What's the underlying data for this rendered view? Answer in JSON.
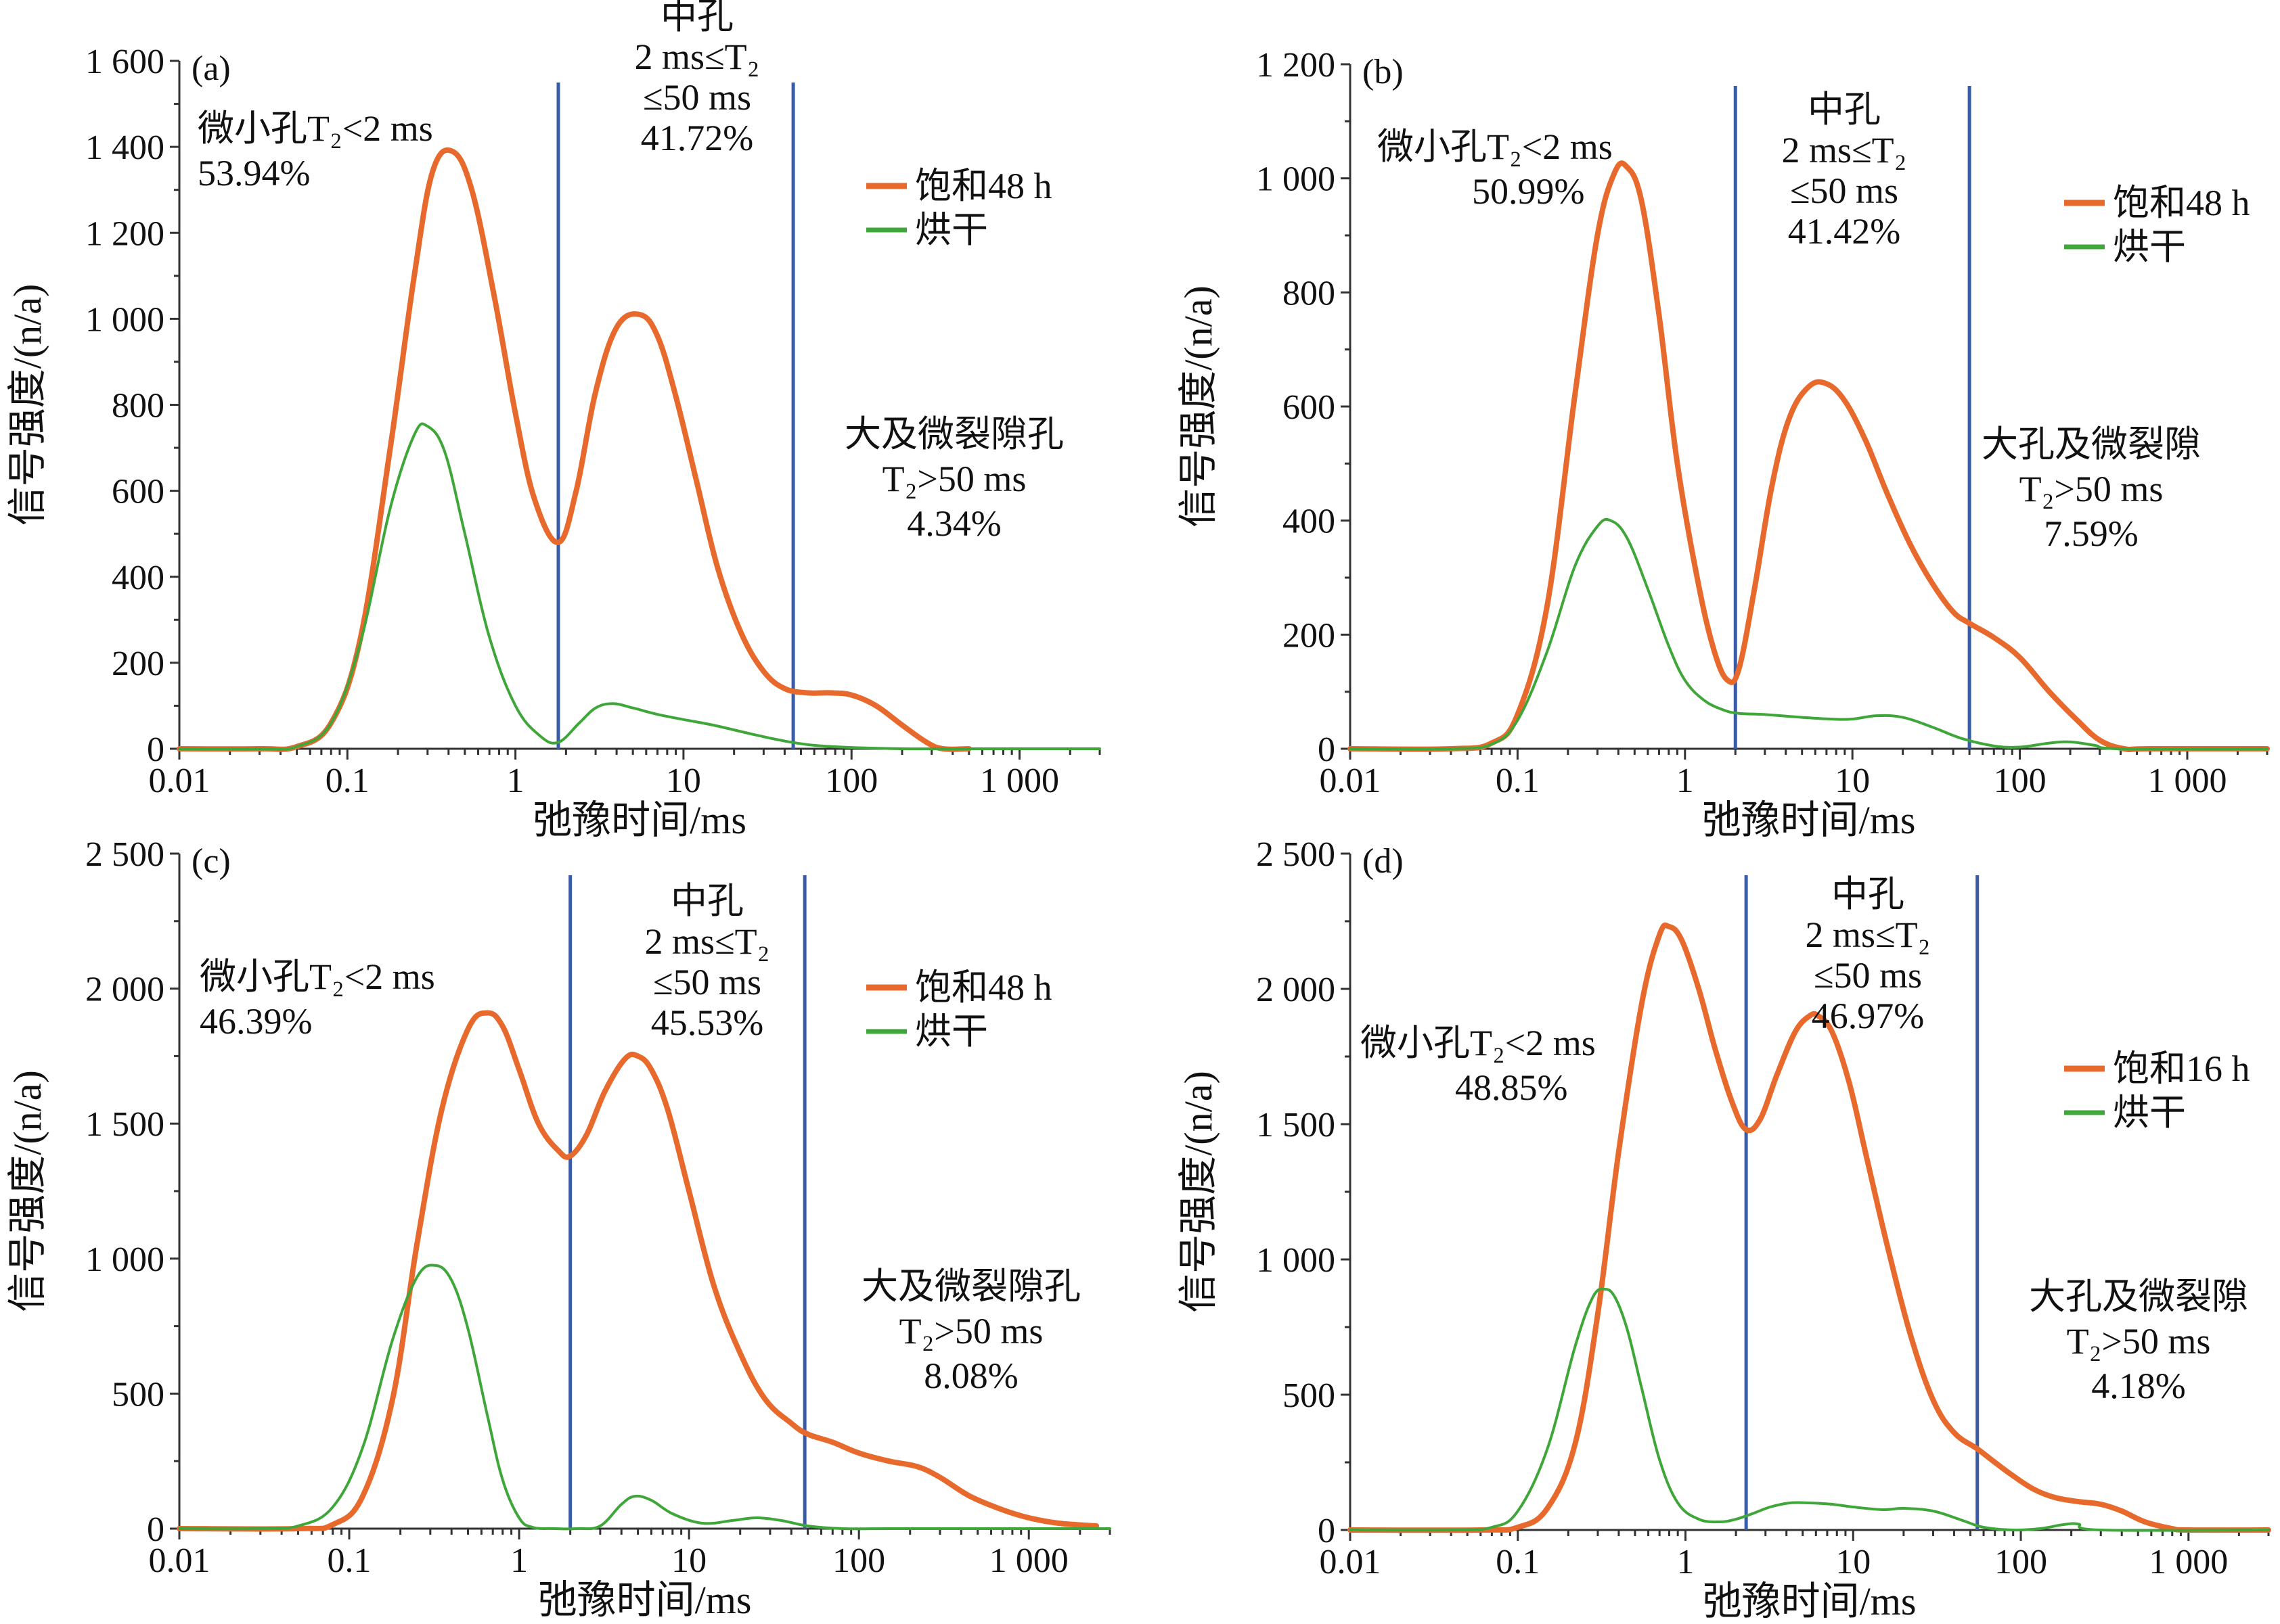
{
  "colors": {
    "saturated": "#e8692c",
    "dried": "#3fa63a",
    "divider": "#3a5ba8",
    "axis": "#333333"
  },
  "chart_data": [
    {
      "type": "line",
      "panel_label": "(a)",
      "xlabel": "弛豫时间/ms",
      "ylabel": "信号强度/(n/a)",
      "x_scale": "log",
      "xlim": [
        0.01,
        3000
      ],
      "ylim": [
        0,
        1600
      ],
      "x_ticks": [
        0.01,
        0.1,
        1,
        10,
        100,
        1000
      ],
      "x_tick_labels": [
        "0.01",
        "0.1",
        "1",
        "10",
        "100",
        "1 000"
      ],
      "y_ticks": [
        0,
        200,
        400,
        600,
        800,
        1000,
        1200,
        1400,
        1600
      ],
      "y_tick_labels": [
        "0",
        "200",
        "400",
        "600",
        "800",
        "1 000",
        "1 200",
        "1 400",
        "1 600"
      ],
      "dividers": [
        1.8,
        45
      ],
      "annotations": {
        "small_title": "微小孔T₂<2 ms",
        "small_pct": "53.94%",
        "mid_title": "中孔",
        "mid_range1": "2 ms≤T₂",
        "mid_range2": "≤50 ms",
        "mid_pct": "41.72%",
        "large_title": "大及微裂隙孔",
        "large_range": "T₂>50 ms",
        "large_pct": "4.34%"
      },
      "series": [
        {
          "name": "饱和48 h",
          "x": [
            0.01,
            0.03,
            0.05,
            0.08,
            0.12,
            0.18,
            0.25,
            0.32,
            0.42,
            0.55,
            0.75,
            1.0,
            1.3,
            1.8,
            2.3,
            3.0,
            4.0,
            5.5,
            7.0,
            9.0,
            12,
            16,
            22,
            30,
            40,
            55,
            75,
            100,
            140,
            200,
            280,
            350,
            500
          ],
          "values": [
            0,
            0,
            5,
            60,
            260,
            700,
            1100,
            1340,
            1390,
            1300,
            1050,
            780,
            580,
            480,
            600,
            830,
            980,
            1010,
            960,
            820,
            620,
            420,
            270,
            180,
            140,
            130,
            130,
            125,
            100,
            55,
            15,
            0,
            0
          ]
        },
        {
          "name": "烘干",
          "x": [
            0.01,
            0.03,
            0.05,
            0.08,
            0.12,
            0.18,
            0.25,
            0.3,
            0.38,
            0.5,
            0.7,
            1.0,
            1.4,
            1.8,
            2.4,
            3.0,
            3.8,
            5.0,
            7.0,
            10,
            15,
            25,
            40,
            60,
            100,
            200,
            400,
            1000,
            3000
          ],
          "values": [
            0,
            0,
            5,
            60,
            250,
            560,
            730,
            750,
            690,
            500,
            260,
            100,
            30,
            15,
            60,
            95,
            105,
            95,
            80,
            68,
            55,
            35,
            18,
            8,
            3,
            0,
            0,
            0,
            0
          ]
        }
      ]
    },
    {
      "type": "line",
      "panel_label": "(b)",
      "xlabel": "弛豫时间/ms",
      "ylabel": "信号强度/(n/a)",
      "x_scale": "log",
      "xlim": [
        0.01,
        3000
      ],
      "ylim": [
        0,
        1200
      ],
      "x_ticks": [
        0.01,
        0.1,
        1,
        10,
        100,
        1000
      ],
      "x_tick_labels": [
        "0.01",
        "0.1",
        "1",
        "10",
        "100",
        "1 000"
      ],
      "y_ticks": [
        0,
        200,
        400,
        600,
        800,
        1000,
        1200
      ],
      "y_tick_labels": [
        "0",
        "200",
        "400",
        "600",
        "800",
        "1 000",
        "1 200"
      ],
      "dividers": [
        2,
        50
      ],
      "annotations": {
        "small_title": "微小孔T₂<2 ms",
        "small_pct": "50.99%",
        "mid_title": "中孔",
        "mid_range1": "2 ms≤T₂",
        "mid_range2": "≤50 ms",
        "mid_pct": "41.42%",
        "large_title": "大孔及微裂隙",
        "large_range": "T₂>50 ms",
        "large_pct": "7.59%"
      },
      "series": [
        {
          "name": "饱和48 h",
          "x": [
            0.01,
            0.04,
            0.07,
            0.1,
            0.15,
            0.22,
            0.3,
            0.38,
            0.45,
            0.55,
            0.7,
            0.9,
            1.2,
            1.5,
            1.8,
            2.1,
            2.6,
            3.3,
            4.2,
            5.5,
            7.0,
            9.0,
            12,
            16,
            22,
            30,
            40,
            50,
            70,
            100,
            150,
            220,
            300,
            420,
            600,
            3000
          ],
          "values": [
            0,
            0,
            10,
            60,
            250,
            620,
            900,
            1010,
            1020,
            960,
            760,
            500,
            290,
            170,
            120,
            140,
            280,
            460,
            580,
            635,
            640,
            610,
            540,
            450,
            360,
            290,
            240,
            220,
            195,
            160,
            100,
            50,
            15,
            0,
            0,
            0
          ]
        },
        {
          "name": "烘干",
          "x": [
            0.01,
            0.04,
            0.07,
            0.1,
            0.15,
            0.22,
            0.3,
            0.36,
            0.45,
            0.6,
            0.8,
            1.0,
            1.3,
            1.7,
            2.1,
            3.0,
            5.0,
            7.5,
            10,
            14,
            20,
            30,
            45,
            70,
            100,
            150,
            200,
            280,
            400,
            3000
          ],
          "values": [
            0,
            0,
            8,
            50,
            170,
            320,
            390,
            400,
            370,
            280,
            180,
            120,
            85,
            68,
            62,
            60,
            55,
            52,
            52,
            58,
            55,
            38,
            18,
            5,
            3,
            10,
            12,
            6,
            0,
            0
          ]
        }
      ]
    },
    {
      "type": "line",
      "panel_label": "(c)",
      "xlabel": "弛豫时间/ms",
      "ylabel": "信号强度/(n/a)",
      "x_scale": "log",
      "xlim": [
        0.01,
        3000
      ],
      "ylim": [
        0,
        2500
      ],
      "x_ticks": [
        0.01,
        0.1,
        1,
        10,
        100,
        1000
      ],
      "x_tick_labels": [
        "0.01",
        "0.1",
        "1",
        "10",
        "100",
        "1 000"
      ],
      "y_ticks": [
        0,
        500,
        1000,
        1500,
        2000,
        2500
      ],
      "y_tick_labels": [
        "0",
        "500",
        "1 000",
        "1 500",
        "2 000",
        "2 500"
      ],
      "dividers": [
        2,
        48
      ],
      "annotations": {
        "small_title": "微小孔T₂<2 ms",
        "small_pct": "46.39%",
        "mid_title": "中孔",
        "mid_range1": "2 ms≤T₂",
        "mid_range2": "≤50 ms",
        "mid_pct": "45.53%",
        "large_title": "大及微裂隙孔",
        "large_range": "T₂>50 ms",
        "large_pct": "8.08%"
      },
      "series": [
        {
          "name": "饱和48 h",
          "x": [
            0.01,
            0.05,
            0.08,
            0.12,
            0.18,
            0.25,
            0.35,
            0.5,
            0.65,
            0.8,
            1.0,
            1.3,
            1.7,
            2.0,
            2.5,
            3.2,
            4.2,
            5.0,
            6.0,
            7.5,
            10,
            14,
            20,
            28,
            40,
            50,
            70,
            100,
            150,
            220,
            300,
            450,
            700,
            1000,
            1500,
            2500
          ],
          "values": [
            0,
            0,
            15,
            120,
            480,
            1050,
            1550,
            1850,
            1910,
            1860,
            1700,
            1500,
            1400,
            1380,
            1460,
            1620,
            1740,
            1750,
            1700,
            1550,
            1250,
            900,
            650,
            480,
            390,
            350,
            320,
            280,
            250,
            230,
            190,
            120,
            70,
            40,
            20,
            10
          ]
        },
        {
          "name": "烘干",
          "x": [
            0.01,
            0.03,
            0.05,
            0.08,
            0.12,
            0.18,
            0.25,
            0.32,
            0.4,
            0.5,
            0.65,
            0.8,
            1.0,
            1.2,
            1.6,
            2.2,
            3.0,
            4.0,
            4.8,
            6.0,
            8.0,
            12,
            18,
            25,
            35,
            50,
            80,
            150,
            300,
            1000,
            3000
          ],
          "values": [
            0,
            0,
            10,
            80,
            300,
            700,
            930,
            975,
            920,
            740,
            420,
            180,
            40,
            5,
            0,
            0,
            10,
            90,
            120,
            105,
            55,
            20,
            30,
            40,
            30,
            10,
            0,
            0,
            0,
            0,
            0
          ]
        }
      ]
    },
    {
      "type": "line",
      "panel_label": "(d)",
      "xlabel": "弛豫时间/ms",
      "ylabel": "信号强度/(n/a)",
      "x_scale": "log",
      "xlim": [
        0.01,
        3000
      ],
      "ylim": [
        0,
        2500
      ],
      "x_ticks": [
        0.01,
        0.1,
        1,
        10,
        100,
        1000
      ],
      "x_tick_labels": [
        "0.01",
        "0.1",
        "1",
        "10",
        "100",
        "1 000"
      ],
      "y_ticks": [
        0,
        500,
        1000,
        1500,
        2000,
        2500
      ],
      "y_tick_labels": [
        "0",
        "500",
        "1 000",
        "1 500",
        "2 000",
        "2 500"
      ],
      "dividers": [
        2.3,
        55
      ],
      "annotations": {
        "small_title": "微小孔T₂<2 ms",
        "small_pct": "48.85%",
        "mid_title": "中孔",
        "mid_range1": "2 ms≤T₂",
        "mid_range2": "≤50 ms",
        "mid_pct": "46.97%",
        "large_title": "大孔及微裂隙",
        "large_range": "T₂>50 ms",
        "large_pct": "4.18%"
      },
      "series": [
        {
          "name": "饱和16 h",
          "x": [
            0.01,
            0.06,
            0.1,
            0.15,
            0.22,
            0.3,
            0.4,
            0.55,
            0.7,
            0.8,
            0.95,
            1.2,
            1.5,
            1.9,
            2.3,
            2.8,
            3.5,
            4.5,
            5.5,
            6.2,
            7.5,
            9.5,
            12,
            16,
            22,
            30,
            40,
            55,
            70,
            90,
            120,
            160,
            220,
            300,
            400,
            550,
            800,
            1000,
            3000
          ],
          "values": [
            0,
            0,
            10,
            80,
            320,
            800,
            1400,
            1950,
            2200,
            2230,
            2180,
            2000,
            1780,
            1580,
            1480,
            1520,
            1680,
            1840,
            1900,
            1900,
            1840,
            1650,
            1380,
            1050,
            720,
            480,
            360,
            300,
            250,
            200,
            150,
            120,
            105,
            95,
            70,
            30,
            5,
            0,
            0
          ]
        },
        {
          "name": "烘干",
          "x": [
            0.01,
            0.04,
            0.07,
            0.1,
            0.15,
            0.22,
            0.28,
            0.33,
            0.38,
            0.45,
            0.55,
            0.7,
            0.9,
            1.2,
            1.6,
            2.0,
            2.5,
            3.2,
            4.2,
            5.5,
            7.5,
            10,
            15,
            20,
            30,
            45,
            60,
            90,
            130,
            180,
            220,
            300,
            3000
          ],
          "values": [
            0,
            0,
            10,
            70,
            300,
            680,
            860,
            890,
            860,
            740,
            520,
            260,
            100,
            40,
            30,
            40,
            60,
            85,
            100,
            100,
            95,
            85,
            75,
            80,
            70,
            35,
            10,
            0,
            5,
            20,
            22,
            0,
            0
          ]
        }
      ]
    }
  ]
}
